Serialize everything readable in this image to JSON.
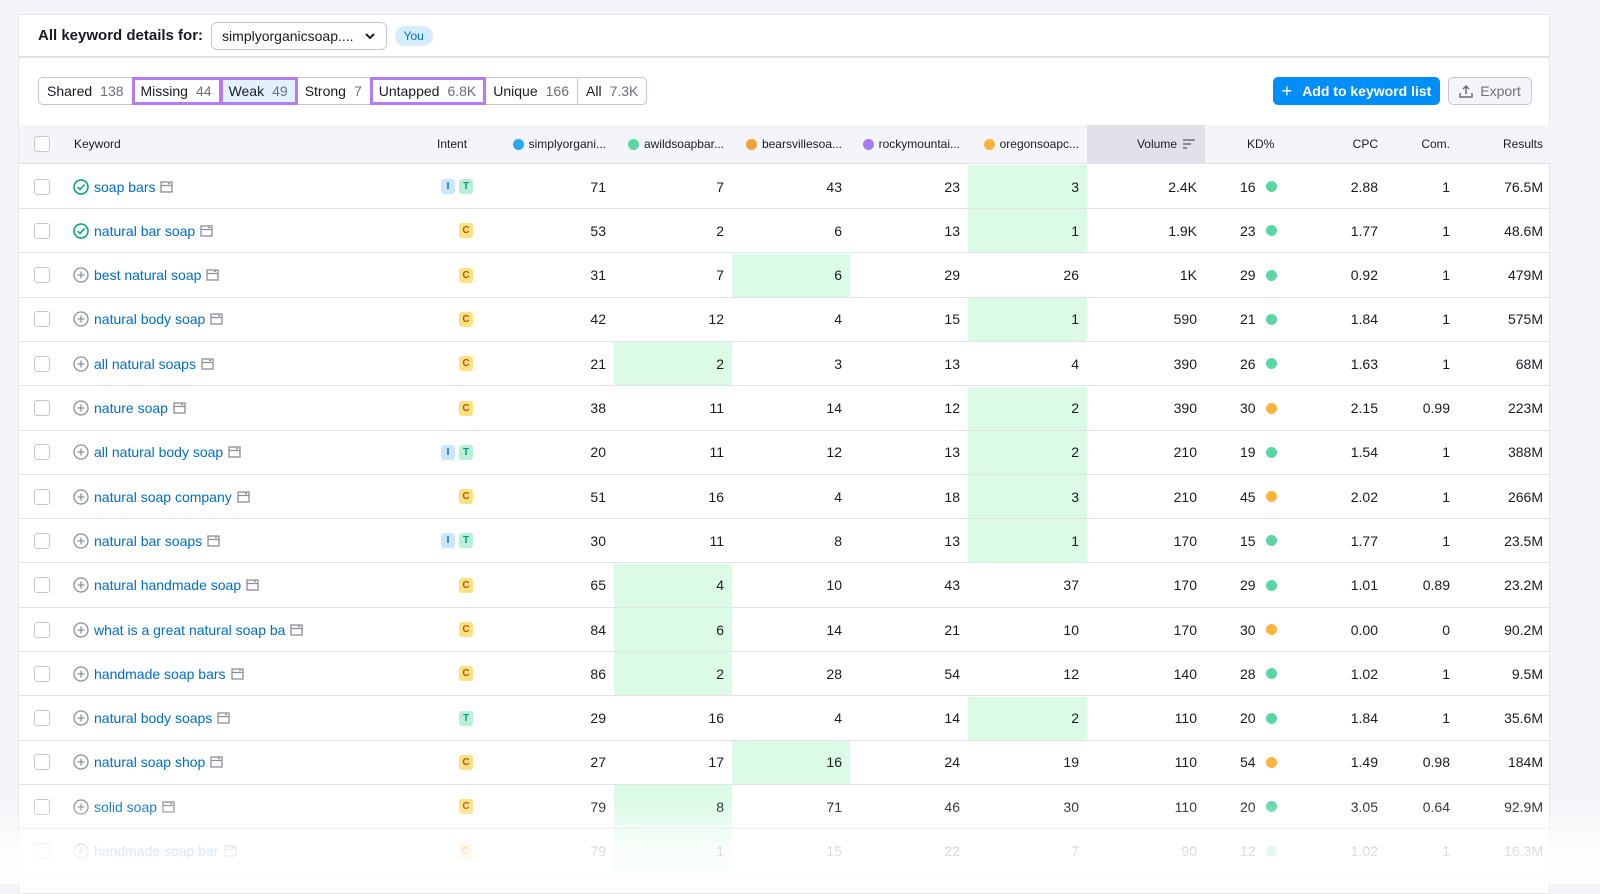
{
  "header": {
    "title": "All keyword details for:",
    "domain": "simplyorganicsoap....",
    "you_badge": "You"
  },
  "tabs": [
    {
      "label": "Shared",
      "count": "138",
      "highlighted": false,
      "selected": false
    },
    {
      "label": "Missing",
      "count": "44",
      "highlighted": true,
      "selected": false
    },
    {
      "label": "Weak",
      "count": "49",
      "highlighted": true,
      "selected": true
    },
    {
      "label": "Strong",
      "count": "7",
      "highlighted": false,
      "selected": false
    },
    {
      "label": "Untapped",
      "count": "6.8K",
      "highlighted": true,
      "selected": false
    },
    {
      "label": "Unique",
      "count": "166",
      "highlighted": false,
      "selected": false
    },
    {
      "label": "All",
      "count": "7.3K",
      "highlighted": false,
      "selected": false
    }
  ],
  "toolbar": {
    "add_label": "Add to keyword list",
    "export_label": "Export"
  },
  "columns": {
    "keyword": "Keyword",
    "intent": "Intent",
    "competitors": [
      {
        "name": "simplyorgani...",
        "color": "#2aa6f5"
      },
      {
        "name": "awildsoapbar...",
        "color": "#5ad6a4"
      },
      {
        "name": "bearsvillesoa...",
        "color": "#f0a03c"
      },
      {
        "name": "rockymountai...",
        "color": "#a37cf0"
      },
      {
        "name": "oregonsoapc...",
        "color": "#f8b43c"
      }
    ],
    "volume": "Volume",
    "kd": "KD%",
    "cpc": "CPC",
    "com": "Com.",
    "results": "Results"
  },
  "colors": {
    "kd_easy": "#5ad6a4",
    "kd_medium": "#f8b43c",
    "highlight": "#dcfbe7",
    "accent": "#008ff8"
  },
  "rows": [
    {
      "keyword": "soap bars",
      "status": "check",
      "intent": [
        "I",
        "T"
      ],
      "pos": [
        "71",
        "7",
        "43",
        "23",
        "3"
      ],
      "best": 4,
      "volume": "2.4K",
      "kd": "16",
      "kd_level": "easy",
      "cpc": "2.88",
      "com": "1",
      "results": "76.5M"
    },
    {
      "keyword": "natural bar soap",
      "status": "check",
      "intent": [
        "C"
      ],
      "pos": [
        "53",
        "2",
        "6",
        "13",
        "1"
      ],
      "best": 4,
      "volume": "1.9K",
      "kd": "23",
      "kd_level": "easy",
      "cpc": "1.77",
      "com": "1",
      "results": "48.6M"
    },
    {
      "keyword": "best natural soap",
      "status": "add",
      "intent": [
        "C"
      ],
      "pos": [
        "31",
        "7",
        "6",
        "29",
        "26"
      ],
      "best": 2,
      "volume": "1K",
      "kd": "29",
      "kd_level": "easy",
      "cpc": "0.92",
      "com": "1",
      "results": "479M"
    },
    {
      "keyword": "natural body soap",
      "status": "add",
      "intent": [
        "C"
      ],
      "pos": [
        "42",
        "12",
        "4",
        "15",
        "1"
      ],
      "best": 4,
      "volume": "590",
      "kd": "21",
      "kd_level": "easy",
      "cpc": "1.84",
      "com": "1",
      "results": "575M"
    },
    {
      "keyword": "all natural soaps",
      "status": "add",
      "intent": [
        "C"
      ],
      "pos": [
        "21",
        "2",
        "3",
        "13",
        "4"
      ],
      "best": 1,
      "volume": "390",
      "kd": "26",
      "kd_level": "easy",
      "cpc": "1.63",
      "com": "1",
      "results": "68M"
    },
    {
      "keyword": "nature soap",
      "status": "add",
      "intent": [
        "C"
      ],
      "pos": [
        "38",
        "11",
        "14",
        "12",
        "2"
      ],
      "best": 4,
      "volume": "390",
      "kd": "30",
      "kd_level": "medium",
      "cpc": "2.15",
      "com": "0.99",
      "results": "223M"
    },
    {
      "keyword": "all natural body soap",
      "status": "add",
      "intent": [
        "I",
        "T"
      ],
      "pos": [
        "20",
        "11",
        "12",
        "13",
        "2"
      ],
      "best": 4,
      "volume": "210",
      "kd": "19",
      "kd_level": "easy",
      "cpc": "1.54",
      "com": "1",
      "results": "388M"
    },
    {
      "keyword": "natural soap company",
      "status": "add",
      "intent": [
        "C"
      ],
      "pos": [
        "51",
        "16",
        "4",
        "18",
        "3"
      ],
      "best": 4,
      "volume": "210",
      "kd": "45",
      "kd_level": "medium",
      "cpc": "2.02",
      "com": "1",
      "results": "266M"
    },
    {
      "keyword": "natural bar soaps",
      "status": "add",
      "intent": [
        "I",
        "T"
      ],
      "pos": [
        "30",
        "11",
        "8",
        "13",
        "1"
      ],
      "best": 4,
      "volume": "170",
      "kd": "15",
      "kd_level": "easy",
      "cpc": "1.77",
      "com": "1",
      "results": "23.5M"
    },
    {
      "keyword": "natural handmade soap",
      "status": "add",
      "intent": [
        "C"
      ],
      "pos": [
        "65",
        "4",
        "10",
        "43",
        "37"
      ],
      "best": 1,
      "volume": "170",
      "kd": "29",
      "kd_level": "easy",
      "cpc": "1.01",
      "com": "0.89",
      "results": "23.2M"
    },
    {
      "keyword": "what is a great natural soap ba",
      "status": "add",
      "intent": [
        "C"
      ],
      "pos": [
        "84",
        "6",
        "14",
        "21",
        "10"
      ],
      "best": 1,
      "volume": "170",
      "kd": "30",
      "kd_level": "medium",
      "cpc": "0.00",
      "com": "0",
      "results": "90.2M"
    },
    {
      "keyword": "handmade soap bars",
      "status": "add",
      "intent": [
        "C"
      ],
      "pos": [
        "86",
        "2",
        "28",
        "54",
        "12"
      ],
      "best": 1,
      "volume": "140",
      "kd": "28",
      "kd_level": "easy",
      "cpc": "1.02",
      "com": "1",
      "results": "9.5M"
    },
    {
      "keyword": "natural body soaps",
      "status": "add",
      "intent": [
        "T"
      ],
      "pos": [
        "29",
        "16",
        "4",
        "14",
        "2"
      ],
      "best": 4,
      "volume": "110",
      "kd": "20",
      "kd_level": "easy",
      "cpc": "1.84",
      "com": "1",
      "results": "35.6M"
    },
    {
      "keyword": "natural soap shop",
      "status": "add",
      "intent": [
        "C"
      ],
      "pos": [
        "27",
        "17",
        "16",
        "24",
        "19"
      ],
      "best": 2,
      "volume": "110",
      "kd": "54",
      "kd_level": "medium",
      "cpc": "1.49",
      "com": "0.98",
      "results": "184M"
    },
    {
      "keyword": "solid soap",
      "status": "add",
      "intent": [
        "C"
      ],
      "pos": [
        "79",
        "8",
        "71",
        "46",
        "30"
      ],
      "best": 1,
      "volume": "110",
      "kd": "20",
      "kd_level": "easy",
      "cpc": "3.05",
      "com": "0.64",
      "results": "92.9M"
    },
    {
      "keyword": "handmade soap bar",
      "status": "add",
      "intent": [
        "C"
      ],
      "pos": [
        "79",
        "1",
        "15",
        "22",
        "7"
      ],
      "best": 1,
      "volume": "90",
      "kd": "12",
      "kd_level": "easy",
      "cpc": "1.02",
      "com": "1",
      "results": "16.3M"
    }
  ]
}
